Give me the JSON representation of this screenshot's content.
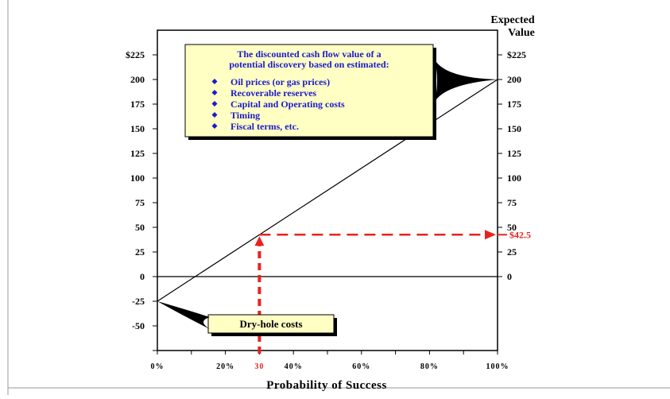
{
  "chart_data": {
    "type": "line",
    "title": "",
    "xlabel": "Probability of Success",
    "ylabel_right": "Expected Value",
    "x_ticks": [
      "0%",
      "20%",
      "40%",
      "60%",
      "80%",
      "100%"
    ],
    "x_marker_label": "30",
    "y_ticks_left": [
      "$225",
      "200",
      "175",
      "150",
      "125",
      "100",
      "75",
      "50",
      "25",
      "0",
      "-25",
      "-50"
    ],
    "y_ticks_right": [
      "$225",
      "200",
      "175",
      "150",
      "125",
      "100",
      "75",
      "50",
      "25",
      "0"
    ],
    "xlim": [
      0,
      100
    ],
    "ylim": [
      -75,
      250
    ],
    "series": [
      {
        "x": [
          0,
          100
        ],
        "y": [
          -25,
          200
        ],
        "color": "#000000"
      }
    ],
    "highlight": {
      "x": 30,
      "y": 42.5,
      "label": "$42.5",
      "color": "#e8221e"
    },
    "zero_line": 0,
    "callout": {
      "title_lines": [
        "The discounted cash flow value of a",
        "potential discovery based on estimated:"
      ],
      "items": [
        "Oil prices (or gas prices)",
        "Recoverable reserves",
        "Capital and Operating costs",
        "Timing",
        "Fiscal terms,   etc."
      ],
      "fill": "#ffffc4"
    },
    "dry_hole_label": "Dry-hole costs"
  }
}
